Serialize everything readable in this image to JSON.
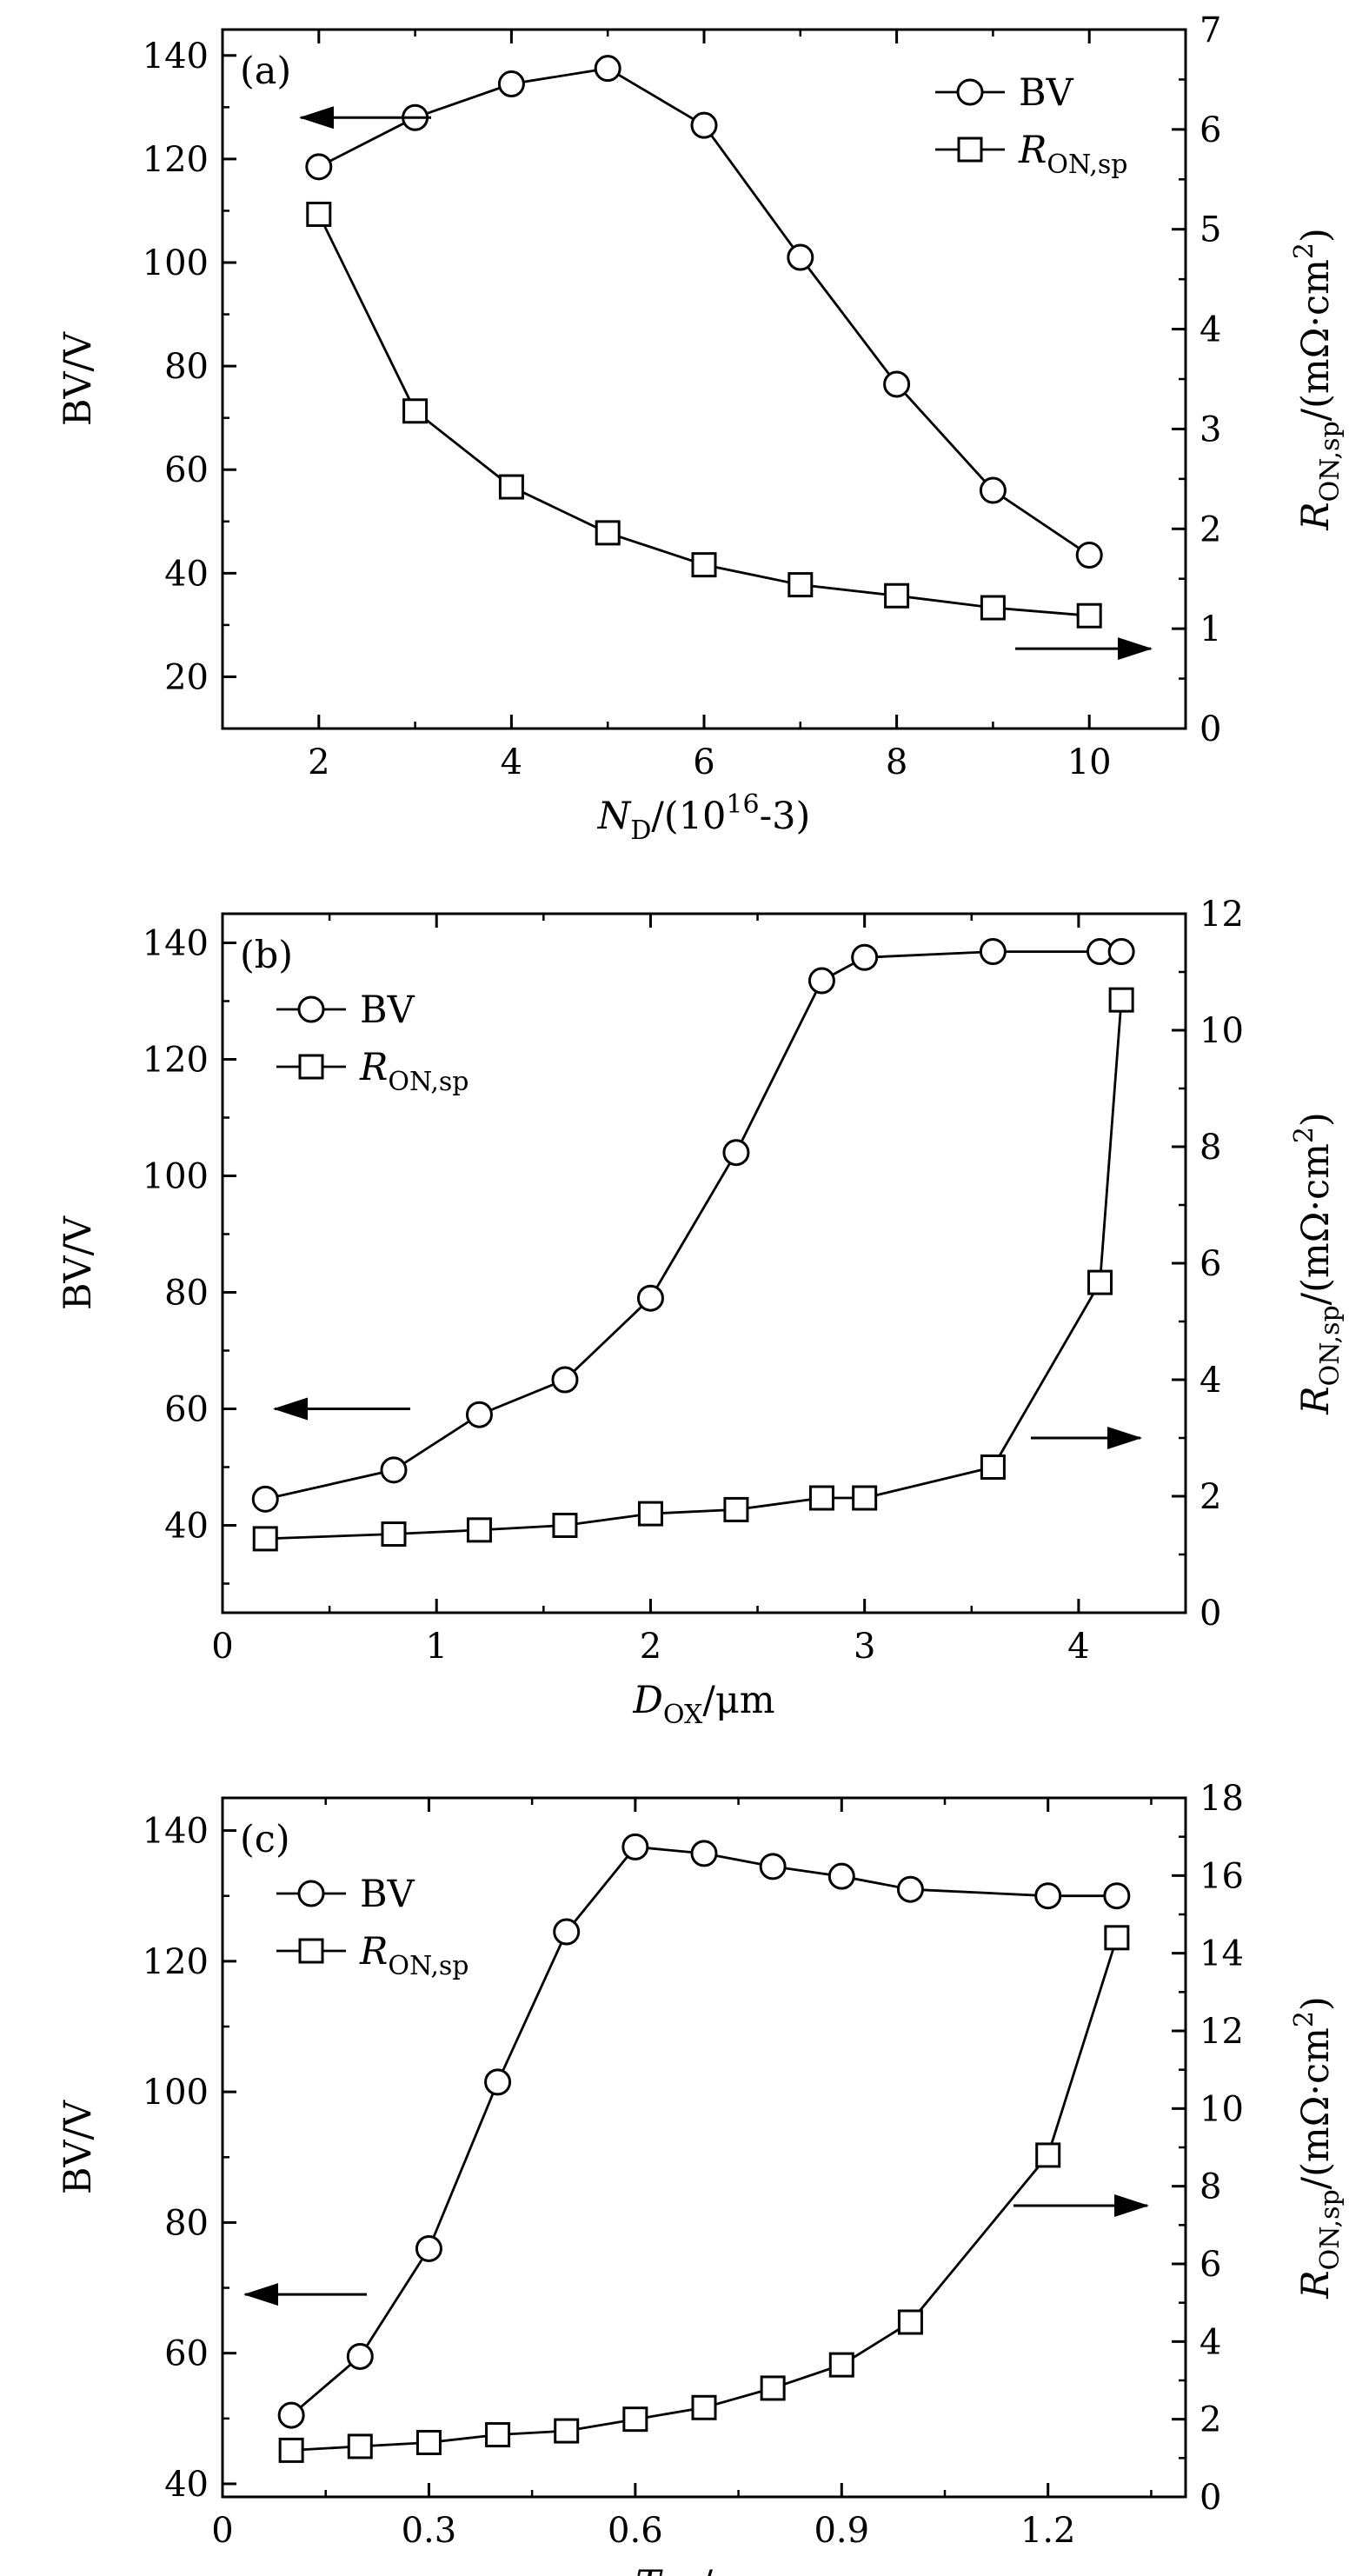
{
  "chart_data": [
    {
      "panel": "(a)",
      "type": "line",
      "xlabel": "N_D/(10^16 cm^-3)",
      "ylabel_left": "BV/V",
      "ylabel_right": "R_ON,sp/(mΩ·cm²)",
      "xlim": [
        1,
        11
      ],
      "ylim_left": [
        10,
        145
      ],
      "ylim_right": [
        0,
        7
      ],
      "x_ticks": [
        2,
        4,
        6,
        8,
        10
      ],
      "y_left_ticks": [
        20,
        40,
        60,
        80,
        100,
        120,
        140
      ],
      "y_right_ticks": [
        0,
        1,
        2,
        3,
        4,
        5,
        6,
        7
      ],
      "legend_position": "top-right",
      "grid": false,
      "series": [
        {
          "name": "BV",
          "axis": "left",
          "marker": "circle",
          "x": [
            2,
            3,
            4,
            5,
            6,
            7,
            8,
            9,
            10
          ],
          "y": [
            118.5,
            128,
            134.5,
            137.5,
            126.5,
            101,
            76.5,
            56,
            43.5
          ]
        },
        {
          "name": "R_ON,sp",
          "axis": "right",
          "marker": "square",
          "x": [
            2,
            3,
            4,
            5,
            6,
            7,
            8,
            9,
            10
          ],
          "y": [
            5.15,
            3.18,
            2.42,
            1.96,
            1.64,
            1.44,
            1.33,
            1.21,
            1.13
          ]
        }
      ]
    },
    {
      "panel": "(b)",
      "type": "line",
      "xlabel": "D_OX/μm",
      "ylabel_left": "BV/V",
      "ylabel_right": "R_ON,sp/(mΩ·cm²)",
      "xlim": [
        0,
        4.5
      ],
      "ylim_left": [
        25,
        145
      ],
      "ylim_right": [
        0,
        12
      ],
      "x_ticks": [
        0,
        1,
        2,
        3,
        4
      ],
      "y_left_ticks": [
        40,
        60,
        80,
        100,
        120,
        140
      ],
      "y_right_ticks": [
        0,
        2,
        4,
        6,
        8,
        10,
        12
      ],
      "legend_position": "top-left",
      "grid": false,
      "series": [
        {
          "name": "BV",
          "axis": "left",
          "marker": "circle",
          "x": [
            0.2,
            0.8,
            1.2,
            1.6,
            2.0,
            2.4,
            2.8,
            3.0,
            3.6,
            4.1,
            4.2
          ],
          "y": [
            44.5,
            49.5,
            59,
            65,
            79,
            104,
            133.5,
            137.5,
            138.5,
            138.5,
            138.5
          ]
        },
        {
          "name": "R_ON,sp",
          "axis": "right",
          "marker": "square",
          "x": [
            0.2,
            0.8,
            1.2,
            1.6,
            2.0,
            2.4,
            2.8,
            3.0,
            3.6,
            4.1,
            4.2
          ],
          "y": [
            1.27,
            1.35,
            1.42,
            1.5,
            1.7,
            1.77,
            1.97,
            1.97,
            2.5,
            5.67,
            10.52
          ]
        }
      ]
    },
    {
      "panel": "(c)",
      "type": "line",
      "xlabel": "T_OX/μm",
      "ylabel_left": "BV/V",
      "ylabel_right": "R_ON,sp/(mΩ·cm²)",
      "xlim": [
        0,
        1.4
      ],
      "ylim_left": [
        38,
        145
      ],
      "ylim_right": [
        0,
        18
      ],
      "x_ticks": [
        0,
        0.3,
        0.6,
        0.9,
        1.2
      ],
      "y_left_ticks": [
        40,
        60,
        80,
        100,
        120,
        140
      ],
      "y_right_ticks": [
        0,
        2,
        4,
        6,
        8,
        10,
        12,
        14,
        16,
        18
      ],
      "legend_position": "top-left",
      "grid": false,
      "series": [
        {
          "name": "BV",
          "axis": "left",
          "marker": "circle",
          "x": [
            0.1,
            0.2,
            0.3,
            0.4,
            0.5,
            0.6,
            0.7,
            0.8,
            0.9,
            1.0,
            1.2,
            1.3
          ],
          "y": [
            50.5,
            59.5,
            76,
            101.5,
            124.5,
            137.5,
            136.5,
            134.5,
            133,
            131,
            130,
            130
          ]
        },
        {
          "name": "R_ON,sp",
          "axis": "right",
          "marker": "square",
          "x": [
            0.1,
            0.2,
            0.3,
            0.4,
            0.5,
            0.6,
            0.7,
            0.8,
            0.9,
            1.0,
            1.2,
            1.3
          ],
          "y": [
            1.2,
            1.3,
            1.4,
            1.6,
            1.7,
            2.0,
            2.3,
            2.8,
            3.4,
            4.5,
            8.8,
            14.4
          ]
        }
      ]
    }
  ]
}
